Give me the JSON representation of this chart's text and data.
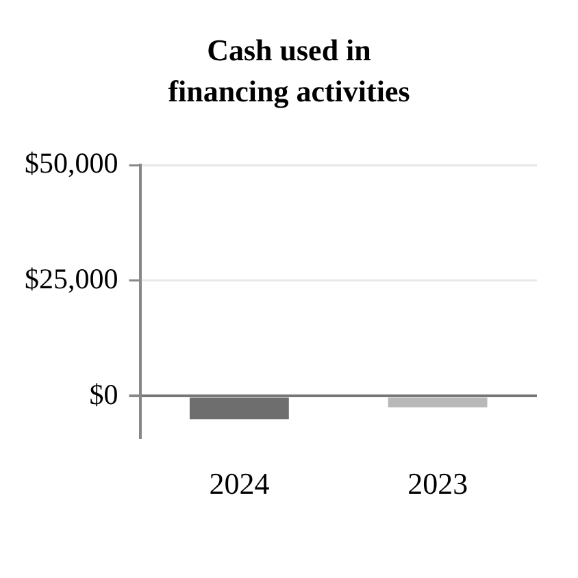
{
  "chart_data": {
    "type": "bar",
    "title": "Cash used in financing activities",
    "categories": [
      "2024",
      "2023"
    ],
    "values": [
      -5000,
      -2400
    ],
    "colors": [
      "#6e6e6e",
      "#b8b8b8"
    ],
    "ylim": [
      -9000,
      50000
    ],
    "yticks": [
      {
        "value": 0,
        "label": "$0"
      },
      {
        "value": 25000,
        "label": "$25,000"
      },
      {
        "value": 50000,
        "label": "$50,000"
      }
    ],
    "grid": "y",
    "legend": false
  }
}
